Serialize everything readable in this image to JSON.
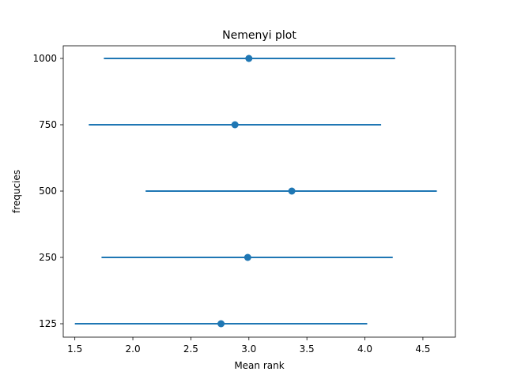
{
  "chart_data": {
    "type": "scatter",
    "title": "Nemenyi plot",
    "xlabel": "Mean rank",
    "ylabel": "frequcies",
    "xlim": [
      1.4,
      4.78
    ],
    "categories": [
      "125",
      "250",
      "500",
      "750",
      "1000"
    ],
    "x_ticks": [
      "1.5",
      "2.0",
      "2.5",
      "3.0",
      "3.5",
      "4.0",
      "4.5"
    ],
    "points": [
      {
        "category": "125",
        "mean": 2.76,
        "low": 1.5,
        "high": 4.02
      },
      {
        "category": "250",
        "mean": 2.99,
        "low": 1.73,
        "high": 4.24
      },
      {
        "category": "500",
        "mean": 3.37,
        "low": 2.11,
        "high": 4.62
      },
      {
        "category": "750",
        "mean": 2.88,
        "low": 1.62,
        "high": 4.14
      },
      {
        "category": "1000",
        "mean": 3.0,
        "low": 1.75,
        "high": 4.26
      }
    ],
    "grid": false,
    "color": "#1f77b4"
  }
}
